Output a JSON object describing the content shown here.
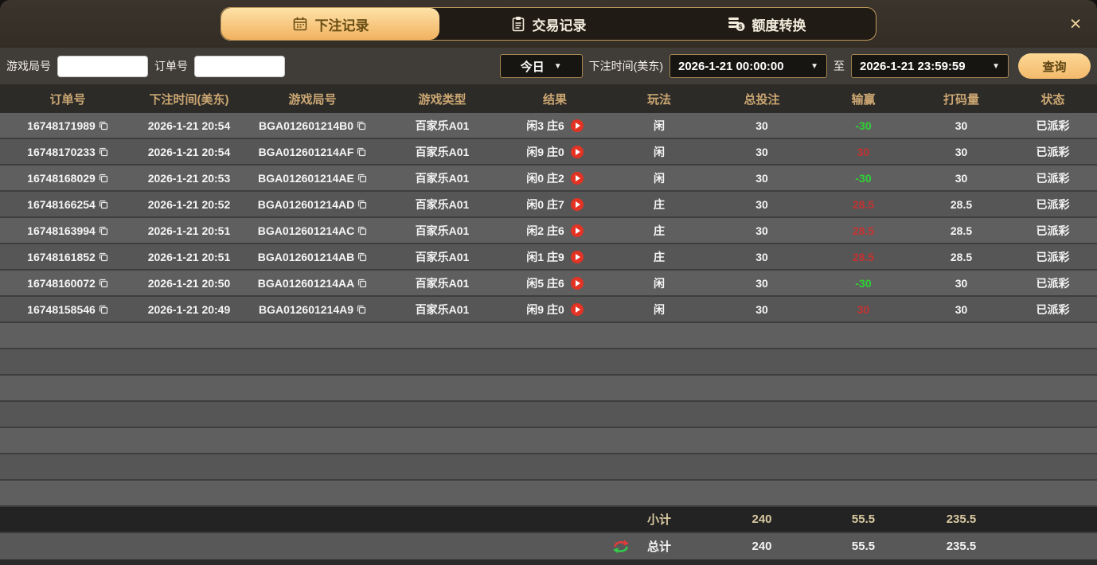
{
  "tabs": [
    {
      "label": "下注记录",
      "icon": "calendar-icon",
      "active": true
    },
    {
      "label": "交易记录",
      "icon": "clipboard-icon",
      "active": false
    },
    {
      "label": "额度转换",
      "icon": "coins-icon",
      "active": false
    }
  ],
  "close_glyph": "×",
  "filters": {
    "game_round_label": "游戏局号",
    "game_round_value": "",
    "order_no_label": "订单号",
    "order_no_value": "",
    "quick_range": "今日",
    "dropdown_glyph": "▼",
    "bet_time_label": "下注时间(美东)",
    "time_from": "2026-1-21 00:00:00",
    "to_label": "至",
    "time_to": "2026-1-21 23:59:59",
    "query_label": "查询"
  },
  "table": {
    "headers": [
      "订单号",
      "下注时间(美东)",
      "游戏局号",
      "游戏类型",
      "结果",
      "玩法",
      "总投注",
      "输赢",
      "打码量",
      "状态"
    ],
    "rows": [
      {
        "order_no": "16748171989",
        "bet_time": "2026-1-21 20:54",
        "round_no": "BGA012601214B0",
        "game_type": "百家乐A01",
        "result": "闲3 庄6",
        "play": "闲",
        "total_bet": "30",
        "win_loss": "-30",
        "win_loss_color": "green",
        "turnover": "30",
        "status": "已派彩"
      },
      {
        "order_no": "16748170233",
        "bet_time": "2026-1-21 20:54",
        "round_no": "BGA012601214AF",
        "game_type": "百家乐A01",
        "result": "闲9 庄0",
        "play": "闲",
        "total_bet": "30",
        "win_loss": "30",
        "win_loss_color": "red",
        "turnover": "30",
        "status": "已派彩"
      },
      {
        "order_no": "16748168029",
        "bet_time": "2026-1-21 20:53",
        "round_no": "BGA012601214AE",
        "game_type": "百家乐A01",
        "result": "闲0 庄2",
        "play": "闲",
        "total_bet": "30",
        "win_loss": "-30",
        "win_loss_color": "green",
        "turnover": "30",
        "status": "已派彩"
      },
      {
        "order_no": "16748166254",
        "bet_time": "2026-1-21 20:52",
        "round_no": "BGA012601214AD",
        "game_type": "百家乐A01",
        "result": "闲0 庄7",
        "play": "庄",
        "total_bet": "30",
        "win_loss": "28.5",
        "win_loss_color": "red",
        "turnover": "28.5",
        "status": "已派彩"
      },
      {
        "order_no": "16748163994",
        "bet_time": "2026-1-21 20:51",
        "round_no": "BGA012601214AC",
        "game_type": "百家乐A01",
        "result": "闲2 庄6",
        "play": "庄",
        "total_bet": "30",
        "win_loss": "28.5",
        "win_loss_color": "red",
        "turnover": "28.5",
        "status": "已派彩"
      },
      {
        "order_no": "16748161852",
        "bet_time": "2026-1-21 20:51",
        "round_no": "BGA012601214AB",
        "game_type": "百家乐A01",
        "result": "闲1 庄9",
        "play": "庄",
        "total_bet": "30",
        "win_loss": "28.5",
        "win_loss_color": "red",
        "turnover": "28.5",
        "status": "已派彩"
      },
      {
        "order_no": "16748160072",
        "bet_time": "2026-1-21 20:50",
        "round_no": "BGA012601214AA",
        "game_type": "百家乐A01",
        "result": "闲5 庄6",
        "play": "闲",
        "total_bet": "30",
        "win_loss": "-30",
        "win_loss_color": "green",
        "turnover": "30",
        "status": "已派彩"
      },
      {
        "order_no": "16748158546",
        "bet_time": "2026-1-21 20:49",
        "round_no": "BGA012601214A9",
        "game_type": "百家乐A01",
        "result": "闲9 庄0",
        "play": "闲",
        "total_bet": "30",
        "win_loss": "30",
        "win_loss_color": "red",
        "turnover": "30",
        "status": "已派彩"
      }
    ],
    "empty_row_count": 7,
    "subtotal": {
      "label": "小计",
      "total_bet": "240",
      "win_loss": "55.5",
      "turnover": "235.5"
    },
    "total": {
      "label": "总计",
      "total_bet": "240",
      "win_loss": "55.5",
      "turnover": "235.5"
    }
  },
  "colors": {
    "accent_gold": "#f2b766",
    "tab_border_gold": "#bf9a5b",
    "header_text_tan": "#cba672",
    "win_red": "#c43232",
    "loss_green": "#2fd235",
    "play_icon_red": "#e23324"
  }
}
